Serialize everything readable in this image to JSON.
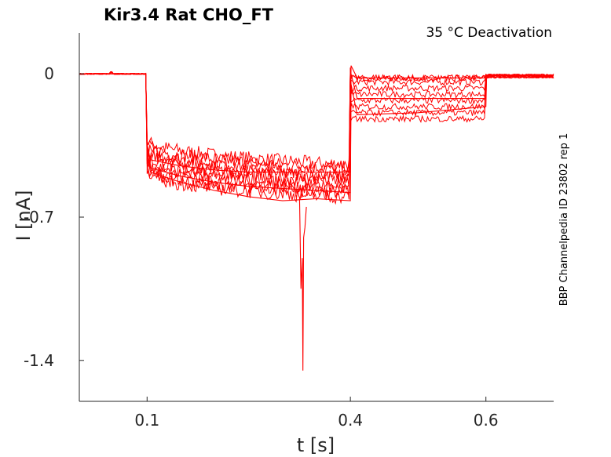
{
  "chart_data": {
    "type": "line",
    "title": "Kir3.4  Rat  CHO_FT",
    "annotation": "35 °C  Deactivation",
    "side_note": "BBP Channelpedia ID 23802 rep 1",
    "xlabel": "t [s]",
    "ylabel": "I [nA]",
    "xlim": [
      0.0,
      0.7
    ],
    "ylim": [
      -1.6,
      0.2
    ],
    "x_ticks": [
      {
        "value": 0.1,
        "label": "0.1"
      },
      {
        "value": 0.4,
        "label": "0.4"
      },
      {
        "value": 0.6,
        "label": "0.6"
      }
    ],
    "y_ticks": [
      {
        "value": 0,
        "label": "0"
      },
      {
        "value": -0.7,
        "label": "-0.7"
      },
      {
        "value": -1.4,
        "label": "-1.4"
      }
    ],
    "line_color": "#ff0000",
    "grid": false,
    "sweep_levels_step": [
      -0.44,
      -0.46,
      -0.48,
      -0.5,
      -0.52,
      -0.54,
      -0.56,
      -0.58,
      -0.6
    ],
    "sweep_levels_tail": [
      -0.02,
      -0.04,
      -0.07,
      -0.1,
      -0.13,
      -0.16,
      -0.19,
      -0.22
    ],
    "series": [
      {
        "x": [
          0.0,
          0.098,
          0.1,
          0.105,
          0.15,
          0.2,
          0.25,
          0.3,
          0.35,
          0.4,
          0.401,
          0.41,
          0.5,
          0.6,
          0.601,
          0.7
        ],
        "y": [
          0.0,
          0.0,
          -0.35,
          -0.42,
          -0.45,
          -0.47,
          -0.48,
          -0.48,
          -0.48,
          -0.48,
          0.04,
          -0.02,
          -0.02,
          -0.02,
          -0.005,
          -0.01
        ]
      },
      {
        "x": [
          0.0,
          0.098,
          0.1,
          0.105,
          0.15,
          0.2,
          0.25,
          0.3,
          0.35,
          0.4,
          0.401,
          0.41,
          0.5,
          0.6,
          0.601,
          0.7
        ],
        "y": [
          0.0,
          0.0,
          -0.38,
          -0.46,
          -0.5,
          -0.53,
          -0.55,
          -0.56,
          -0.57,
          -0.58,
          0.0,
          -0.12,
          -0.12,
          -0.12,
          -0.01,
          -0.01
        ]
      },
      {
        "x": [
          0.0,
          0.098,
          0.1,
          0.105,
          0.15,
          0.2,
          0.25,
          0.3,
          0.35,
          0.4,
          0.401,
          0.41,
          0.5,
          0.6,
          0.601,
          0.7
        ],
        "y": [
          0.0,
          0.0,
          -0.4,
          -0.48,
          -0.53,
          -0.57,
          -0.6,
          -0.62,
          -0.61,
          -0.62,
          -0.05,
          -0.2,
          -0.19,
          -0.16,
          -0.01,
          -0.01
        ]
      }
    ],
    "transient": {
      "x": [
        0.325,
        0.327,
        0.329,
        0.33,
        0.331,
        0.333,
        0.335
      ],
      "y": [
        -0.6,
        -1.05,
        -0.9,
        -1.45,
        -0.8,
        -0.75,
        -0.65
      ]
    }
  }
}
